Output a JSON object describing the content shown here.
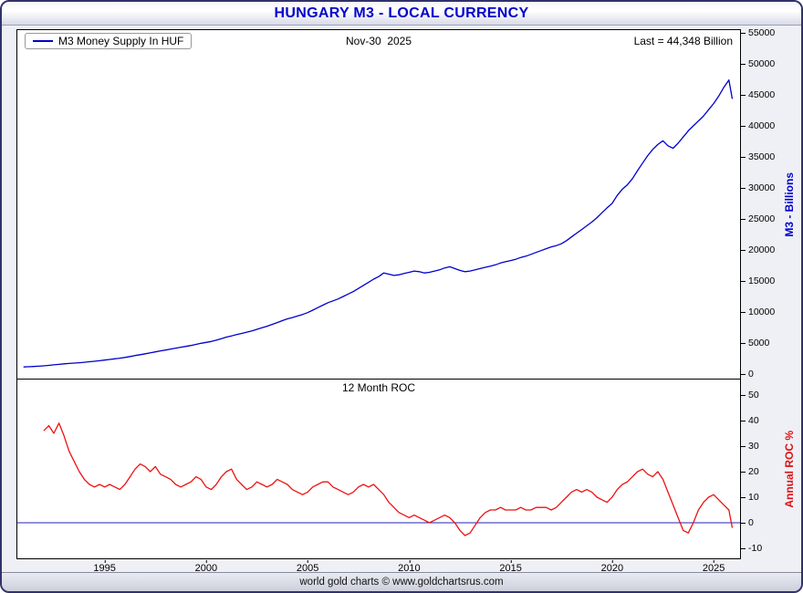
{
  "header": {
    "title": "HUNGARY M3 - LOCAL CURRENCY"
  },
  "top_panel": {
    "legend": "M3 Money Supply In HUF",
    "date": "Nov-30  2025",
    "last": "Last = 44,348 Billion",
    "ylabel": "M3 - Billions"
  },
  "bottom_panel": {
    "title": "12 Month ROC",
    "ylabel": "Annual ROC %"
  },
  "footer": {
    "text": "world gold charts © www.goldchartsrus.com"
  },
  "colors": {
    "title": "#0000cc",
    "m3_line": "#0000cc",
    "roc_line": "#ee1111",
    "zero_line": "#2222bb"
  },
  "chart_data": [
    {
      "type": "line",
      "panel": "m3",
      "name": "M3 Money Supply In HUF",
      "ylabel": "M3 - Billions",
      "color": "#0000cc",
      "xlim": [
        1990.7,
        2026.3
      ],
      "ylim": [
        0,
        55000
      ],
      "yticks": [
        0,
        5000,
        10000,
        15000,
        20000,
        25000,
        30000,
        35000,
        40000,
        45000,
        50000,
        55000
      ],
      "last_value": 44348,
      "points": [
        [
          1991.0,
          1150
        ],
        [
          1991.25,
          1180
        ],
        [
          1991.5,
          1220
        ],
        [
          1991.75,
          1260
        ],
        [
          1992.0,
          1320
        ],
        [
          1992.25,
          1400
        ],
        [
          1992.5,
          1480
        ],
        [
          1992.75,
          1560
        ],
        [
          1993.0,
          1640
        ],
        [
          1993.25,
          1700
        ],
        [
          1993.5,
          1760
        ],
        [
          1993.75,
          1830
        ],
        [
          1994.0,
          1900
        ],
        [
          1994.25,
          1980
        ],
        [
          1994.5,
          2060
        ],
        [
          1994.75,
          2150
        ],
        [
          1995.0,
          2250
        ],
        [
          1995.25,
          2350
        ],
        [
          1995.5,
          2450
        ],
        [
          1995.75,
          2560
        ],
        [
          1996.0,
          2680
        ],
        [
          1996.25,
          2820
        ],
        [
          1996.5,
          2980
        ],
        [
          1996.75,
          3120
        ],
        [
          1997.0,
          3260
        ],
        [
          1997.25,
          3420
        ],
        [
          1997.5,
          3580
        ],
        [
          1997.75,
          3730
        ],
        [
          1998.0,
          3870
        ],
        [
          1998.25,
          4030
        ],
        [
          1998.5,
          4180
        ],
        [
          1998.75,
          4320
        ],
        [
          1999.0,
          4450
        ],
        [
          1999.25,
          4600
        ],
        [
          1999.5,
          4780
        ],
        [
          1999.75,
          4950
        ],
        [
          2000.0,
          5100
        ],
        [
          2000.25,
          5250
        ],
        [
          2000.5,
          5450
        ],
        [
          2000.75,
          5700
        ],
        [
          2001.0,
          5950
        ],
        [
          2001.25,
          6150
        ],
        [
          2001.5,
          6350
        ],
        [
          2001.75,
          6550
        ],
        [
          2002.0,
          6750
        ],
        [
          2002.25,
          6950
        ],
        [
          2002.5,
          7200
        ],
        [
          2002.75,
          7450
        ],
        [
          2003.0,
          7700
        ],
        [
          2003.25,
          8000
        ],
        [
          2003.5,
          8300
        ],
        [
          2003.75,
          8600
        ],
        [
          2004.0,
          8900
        ],
        [
          2004.25,
          9100
        ],
        [
          2004.5,
          9350
        ],
        [
          2004.75,
          9600
        ],
        [
          2005.0,
          9900
        ],
        [
          2005.25,
          10300
        ],
        [
          2005.5,
          10700
        ],
        [
          2005.75,
          11100
        ],
        [
          2006.0,
          11500
        ],
        [
          2006.25,
          11800
        ],
        [
          2006.5,
          12100
        ],
        [
          2006.75,
          12500
        ],
        [
          2007.0,
          12900
        ],
        [
          2007.25,
          13300
        ],
        [
          2007.5,
          13800
        ],
        [
          2007.75,
          14300
        ],
        [
          2008.0,
          14800
        ],
        [
          2008.25,
          15300
        ],
        [
          2008.5,
          15700
        ],
        [
          2008.75,
          16300
        ],
        [
          2009.0,
          16100
        ],
        [
          2009.25,
          15900
        ],
        [
          2009.5,
          16000
        ],
        [
          2009.75,
          16200
        ],
        [
          2010.0,
          16400
        ],
        [
          2010.25,
          16600
        ],
        [
          2010.5,
          16500
        ],
        [
          2010.75,
          16300
        ],
        [
          2011.0,
          16400
        ],
        [
          2011.25,
          16600
        ],
        [
          2011.5,
          16800
        ],
        [
          2011.75,
          17100
        ],
        [
          2012.0,
          17300
        ],
        [
          2012.25,
          17000
        ],
        [
          2012.5,
          16700
        ],
        [
          2012.75,
          16500
        ],
        [
          2013.0,
          16600
        ],
        [
          2013.25,
          16800
        ],
        [
          2013.5,
          17000
        ],
        [
          2013.75,
          17200
        ],
        [
          2014.0,
          17400
        ],
        [
          2014.25,
          17600
        ],
        [
          2014.5,
          17900
        ],
        [
          2014.75,
          18100
        ],
        [
          2015.0,
          18300
        ],
        [
          2015.25,
          18500
        ],
        [
          2015.5,
          18800
        ],
        [
          2015.75,
          19000
        ],
        [
          2016.0,
          19300
        ],
        [
          2016.25,
          19600
        ],
        [
          2016.5,
          19900
        ],
        [
          2016.75,
          20200
        ],
        [
          2017.0,
          20500
        ],
        [
          2017.25,
          20700
        ],
        [
          2017.5,
          21000
        ],
        [
          2017.75,
          21500
        ],
        [
          2018.0,
          22100
        ],
        [
          2018.25,
          22700
        ],
        [
          2018.5,
          23300
        ],
        [
          2018.75,
          23900
        ],
        [
          2019.0,
          24500
        ],
        [
          2019.25,
          25200
        ],
        [
          2019.5,
          26000
        ],
        [
          2019.75,
          26800
        ],
        [
          2020.0,
          27500
        ],
        [
          2020.25,
          28800
        ],
        [
          2020.5,
          29800
        ],
        [
          2020.75,
          30500
        ],
        [
          2021.0,
          31500
        ],
        [
          2021.25,
          32800
        ],
        [
          2021.5,
          34000
        ],
        [
          2021.75,
          35200
        ],
        [
          2022.0,
          36200
        ],
        [
          2022.25,
          37000
        ],
        [
          2022.5,
          37600
        ],
        [
          2022.75,
          36800
        ],
        [
          2023.0,
          36400
        ],
        [
          2023.25,
          37200
        ],
        [
          2023.5,
          38200
        ],
        [
          2023.75,
          39200
        ],
        [
          2024.0,
          40000
        ],
        [
          2024.25,
          40800
        ],
        [
          2024.5,
          41600
        ],
        [
          2024.75,
          42600
        ],
        [
          2025.0,
          43600
        ],
        [
          2025.25,
          44800
        ],
        [
          2025.5,
          46200
        ],
        [
          2025.75,
          47400
        ],
        [
          2025.92,
          44348
        ]
      ]
    },
    {
      "type": "line",
      "panel": "roc",
      "name": "12 Month ROC",
      "ylabel": "Annual ROC %",
      "color": "#ee1111",
      "zero_line": 0,
      "zero_color": "#2222bb",
      "xlim": [
        1990.7,
        2026.3
      ],
      "ylim": [
        -10,
        50
      ],
      "yticks": [
        -10,
        0,
        10,
        20,
        30,
        40,
        50
      ],
      "xticks": [
        1995,
        2000,
        2005,
        2010,
        2015,
        2020,
        2025
      ],
      "points": [
        [
          1992.0,
          36
        ],
        [
          1992.25,
          38
        ],
        [
          1992.5,
          35
        ],
        [
          1992.75,
          39
        ],
        [
          1993.0,
          34
        ],
        [
          1993.25,
          28
        ],
        [
          1993.5,
          24
        ],
        [
          1993.75,
          20
        ],
        [
          1994.0,
          17
        ],
        [
          1994.25,
          15
        ],
        [
          1994.5,
          14
        ],
        [
          1994.75,
          15
        ],
        [
          1995.0,
          14
        ],
        [
          1995.25,
          15
        ],
        [
          1995.5,
          14
        ],
        [
          1995.75,
          13
        ],
        [
          1996.0,
          15
        ],
        [
          1996.25,
          18
        ],
        [
          1996.5,
          21
        ],
        [
          1996.75,
          23
        ],
        [
          1997.0,
          22
        ],
        [
          1997.25,
          20
        ],
        [
          1997.5,
          22
        ],
        [
          1997.75,
          19
        ],
        [
          1998.0,
          18
        ],
        [
          1998.25,
          17
        ],
        [
          1998.5,
          15
        ],
        [
          1998.75,
          14
        ],
        [
          1999.0,
          15
        ],
        [
          1999.25,
          16
        ],
        [
          1999.5,
          18
        ],
        [
          1999.75,
          17
        ],
        [
          2000.0,
          14
        ],
        [
          2000.25,
          13
        ],
        [
          2000.5,
          15
        ],
        [
          2000.75,
          18
        ],
        [
          2001.0,
          20
        ],
        [
          2001.25,
          21
        ],
        [
          2001.5,
          17
        ],
        [
          2001.75,
          15
        ],
        [
          2002.0,
          13
        ],
        [
          2002.25,
          14
        ],
        [
          2002.5,
          16
        ],
        [
          2002.75,
          15
        ],
        [
          2003.0,
          14
        ],
        [
          2003.25,
          15
        ],
        [
          2003.5,
          17
        ],
        [
          2003.75,
          16
        ],
        [
          2004.0,
          15
        ],
        [
          2004.25,
          13
        ],
        [
          2004.5,
          12
        ],
        [
          2004.75,
          11
        ],
        [
          2005.0,
          12
        ],
        [
          2005.25,
          14
        ],
        [
          2005.5,
          15
        ],
        [
          2005.75,
          16
        ],
        [
          2006.0,
          16
        ],
        [
          2006.25,
          14
        ],
        [
          2006.5,
          13
        ],
        [
          2006.75,
          12
        ],
        [
          2007.0,
          11
        ],
        [
          2007.25,
          12
        ],
        [
          2007.5,
          14
        ],
        [
          2007.75,
          15
        ],
        [
          2008.0,
          14
        ],
        [
          2008.25,
          15
        ],
        [
          2008.5,
          13
        ],
        [
          2008.75,
          11
        ],
        [
          2009.0,
          8
        ],
        [
          2009.25,
          6
        ],
        [
          2009.5,
          4
        ],
        [
          2009.75,
          3
        ],
        [
          2010.0,
          2
        ],
        [
          2010.25,
          3
        ],
        [
          2010.5,
          2
        ],
        [
          2010.75,
          1
        ],
        [
          2011.0,
          0
        ],
        [
          2011.25,
          1
        ],
        [
          2011.5,
          2
        ],
        [
          2011.75,
          3
        ],
        [
          2012.0,
          2
        ],
        [
          2012.25,
          0
        ],
        [
          2012.5,
          -3
        ],
        [
          2012.75,
          -5
        ],
        [
          2013.0,
          -4
        ],
        [
          2013.25,
          -1
        ],
        [
          2013.5,
          2
        ],
        [
          2013.75,
          4
        ],
        [
          2014.0,
          5
        ],
        [
          2014.25,
          5
        ],
        [
          2014.5,
          6
        ],
        [
          2014.75,
          5
        ],
        [
          2015.0,
          5
        ],
        [
          2015.25,
          5
        ],
        [
          2015.5,
          6
        ],
        [
          2015.75,
          5
        ],
        [
          2016.0,
          5
        ],
        [
          2016.25,
          6
        ],
        [
          2016.5,
          6
        ],
        [
          2016.75,
          6
        ],
        [
          2017.0,
          5
        ],
        [
          2017.25,
          6
        ],
        [
          2017.5,
          8
        ],
        [
          2017.75,
          10
        ],
        [
          2018.0,
          12
        ],
        [
          2018.25,
          13
        ],
        [
          2018.5,
          12
        ],
        [
          2018.75,
          13
        ],
        [
          2019.0,
          12
        ],
        [
          2019.25,
          10
        ],
        [
          2019.5,
          9
        ],
        [
          2019.75,
          8
        ],
        [
          2020.0,
          10
        ],
        [
          2020.25,
          13
        ],
        [
          2020.5,
          15
        ],
        [
          2020.75,
          16
        ],
        [
          2021.0,
          18
        ],
        [
          2021.25,
          20
        ],
        [
          2021.5,
          21
        ],
        [
          2021.75,
          19
        ],
        [
          2022.0,
          18
        ],
        [
          2022.25,
          20
        ],
        [
          2022.5,
          17
        ],
        [
          2022.75,
          12
        ],
        [
          2023.0,
          7
        ],
        [
          2023.25,
          2
        ],
        [
          2023.5,
          -3
        ],
        [
          2023.75,
          -4
        ],
        [
          2024.0,
          0
        ],
        [
          2024.25,
          5
        ],
        [
          2024.5,
          8
        ],
        [
          2024.75,
          10
        ],
        [
          2025.0,
          11
        ],
        [
          2025.25,
          9
        ],
        [
          2025.5,
          7
        ],
        [
          2025.75,
          5
        ],
        [
          2025.92,
          -2
        ]
      ]
    }
  ]
}
